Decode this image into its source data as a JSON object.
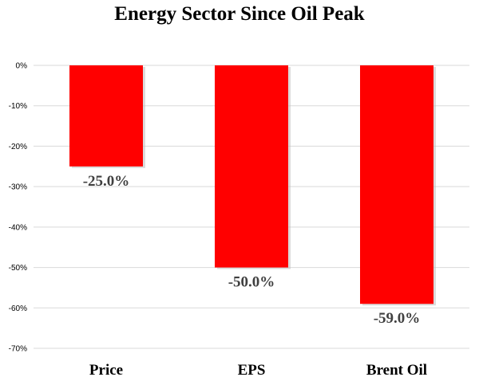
{
  "chart_data": {
    "type": "bar",
    "title": "Energy Sector Since Oil Peak",
    "categories": [
      "Price",
      "EPS",
      "Brent Oil"
    ],
    "values": [
      -25.0,
      -50.0,
      -59.0
    ],
    "data_labels": [
      "-25.0%",
      "-50.0%",
      "-59.0%"
    ],
    "ylim": [
      -70,
      0
    ],
    "yticks": [
      0,
      -10,
      -20,
      -30,
      -40,
      -50,
      -60,
      -70
    ],
    "ytick_labels": [
      "0%",
      "-10%",
      "-20%",
      "-30%",
      "-40%",
      "-50%",
      "-60%",
      "-70%"
    ],
    "xlabel": "",
    "ylabel": "",
    "grid": true,
    "bar_color": "#ff0000"
  }
}
